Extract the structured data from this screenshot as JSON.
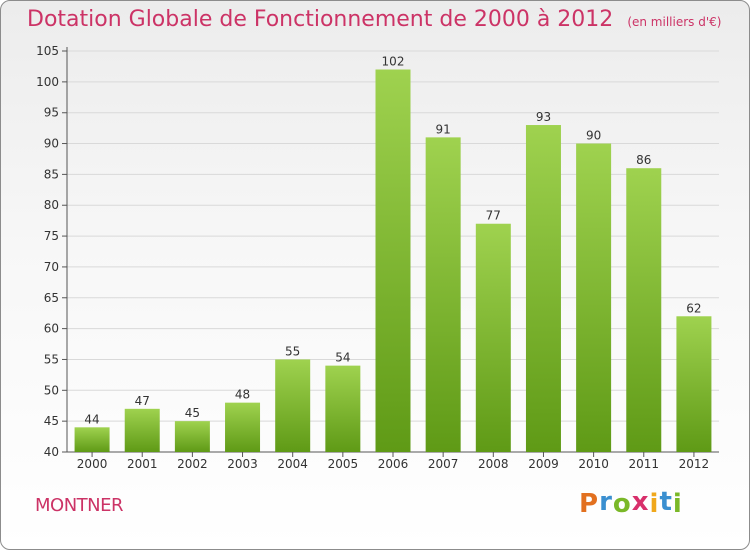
{
  "title": "Dotation Globale de Fonctionnement de 2000 à 2012",
  "subtitle": "(en milliers d'€)",
  "commune": "MONTNER",
  "logo": {
    "text": "Proxiti",
    "colors": [
      "#e2701f",
      "#3a8fd0",
      "#7ab828",
      "#d82f6b",
      "#f0a81c",
      "#3a8fd0",
      "#7ab828"
    ]
  },
  "colors": {
    "title": "#cc3366",
    "bar_top": "#9fd24f",
    "bar_bottom": "#5f9a16",
    "grid": "#d9d9d9",
    "axis": "#555555"
  },
  "chart_data": {
    "type": "bar",
    "categories": [
      "2000",
      "2001",
      "2002",
      "2003",
      "2004",
      "2005",
      "2006",
      "2007",
      "2008",
      "2009",
      "2010",
      "2011",
      "2012"
    ],
    "values": [
      44,
      47,
      45,
      48,
      55,
      54,
      102,
      91,
      77,
      93,
      90,
      86,
      62
    ],
    "ylim": [
      40,
      105
    ],
    "yticks": [
      40,
      45,
      50,
      55,
      60,
      65,
      70,
      75,
      80,
      85,
      90,
      95,
      100,
      105
    ],
    "grid": true,
    "data_labels": true,
    "xlabel": "",
    "ylabel": ""
  }
}
